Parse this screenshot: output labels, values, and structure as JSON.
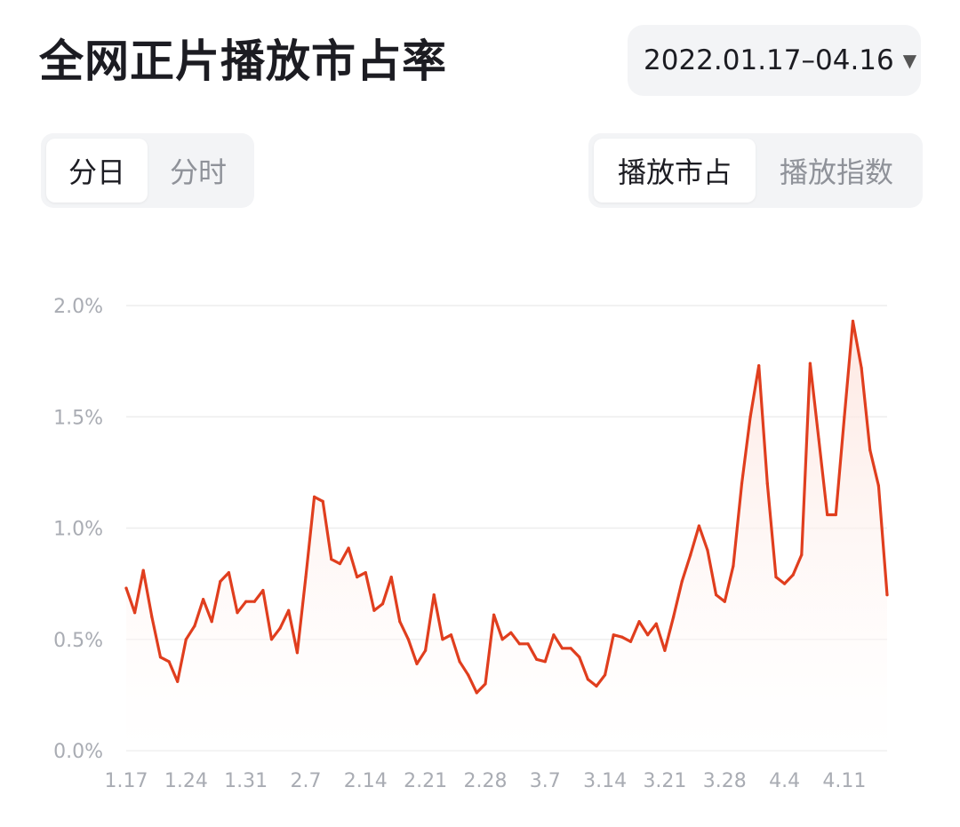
{
  "header": {
    "title": "全网正片播放市占率",
    "date_range": "2022.01.17–04.16",
    "date_caret_icon": "caret-down-icon"
  },
  "granularity_toggle": {
    "options": [
      "分日",
      "分时"
    ],
    "selected": 0
  },
  "metric_toggle": {
    "options": [
      "播放市占",
      "播放指数"
    ],
    "selected": 0
  },
  "colors": {
    "line": "#e03e1e",
    "fill_top": "#fde3dc",
    "grid": "#eeeeee",
    "tick": "#a9acb3"
  },
  "chart_data": {
    "type": "line",
    "title": "",
    "xlabel": "",
    "ylabel": "",
    "x_start": "1.17",
    "x_tick_labels": [
      "1.17",
      "1.24",
      "1.31",
      "2.7",
      "2.14",
      "2.21",
      "2.28",
      "3.7",
      "3.14",
      "3.21",
      "3.28",
      "4.4",
      "4.11"
    ],
    "y_tick_labels": [
      "0.0%",
      "0.5%",
      "1.0%",
      "1.5%",
      "2.0%"
    ],
    "y_ticks": [
      0,
      0.5,
      1.0,
      1.5,
      2.0
    ],
    "ylim": [
      0,
      2.0
    ],
    "y_unit": "%",
    "grid": true,
    "area_fill": true,
    "values": [
      0.73,
      0.62,
      0.81,
      0.6,
      0.42,
      0.4,
      0.31,
      0.5,
      0.56,
      0.68,
      0.58,
      0.76,
      0.8,
      0.62,
      0.67,
      0.67,
      0.72,
      0.5,
      0.55,
      0.63,
      0.44,
      0.78,
      1.14,
      1.12,
      0.86,
      0.84,
      0.91,
      0.78,
      0.8,
      0.63,
      0.66,
      0.78,
      0.58,
      0.5,
      0.39,
      0.45,
      0.7,
      0.5,
      0.52,
      0.4,
      0.34,
      0.26,
      0.3,
      0.61,
      0.5,
      0.53,
      0.48,
      0.48,
      0.41,
      0.4,
      0.52,
      0.46,
      0.46,
      0.42,
      0.32,
      0.29,
      0.34,
      0.52,
      0.51,
      0.49,
      0.58,
      0.52,
      0.57,
      0.45,
      0.6,
      0.76,
      0.88,
      1.01,
      0.9,
      0.7,
      0.67,
      0.83,
      1.2,
      1.5,
      1.73,
      1.2,
      0.78,
      0.75,
      0.79,
      0.88,
      1.74,
      1.4,
      1.06,
      1.06,
      1.5,
      1.93,
      1.72,
      1.35,
      1.19,
      0.7
    ]
  }
}
